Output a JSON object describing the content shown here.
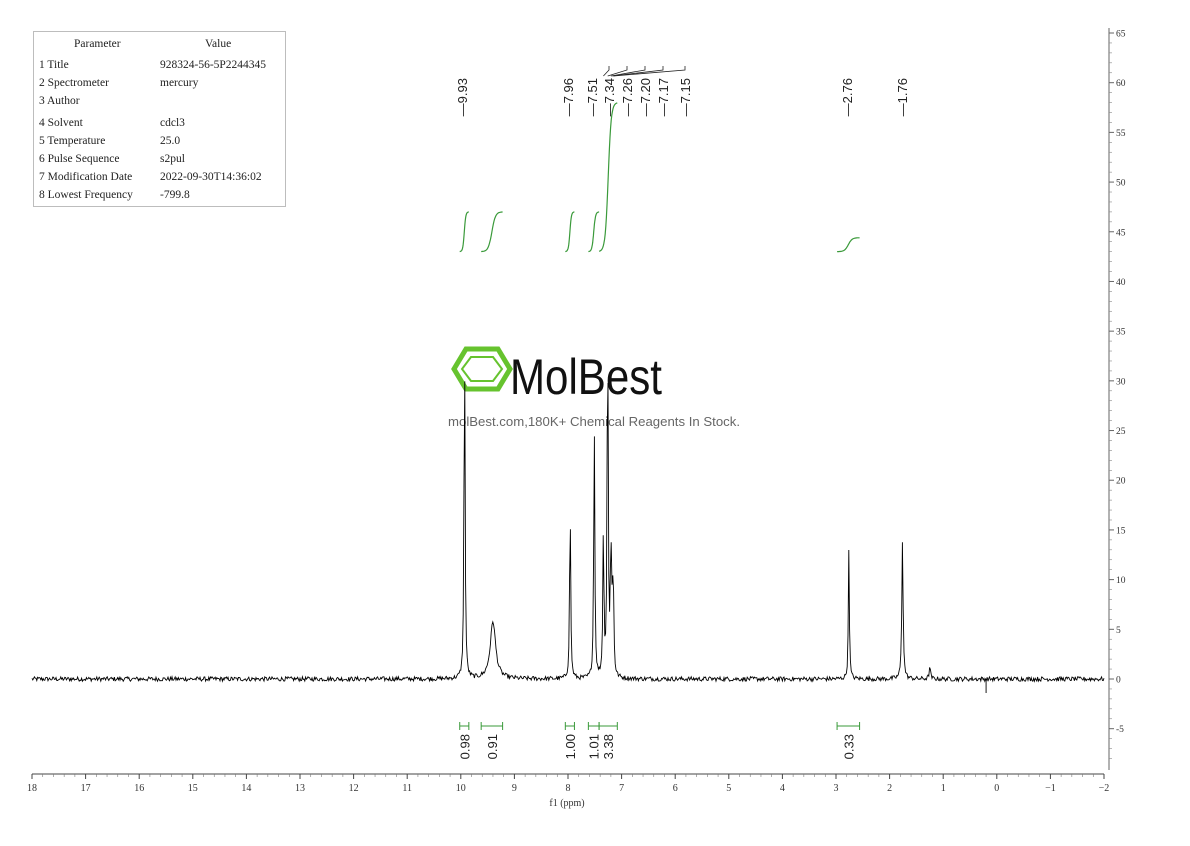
{
  "parameters": {
    "header": {
      "name": "Parameter",
      "value": "Value"
    },
    "rows": [
      {
        "name": "1 Title",
        "value": "928324-56-5P2244345"
      },
      {
        "name": "2 Spectrometer",
        "value": "mercury"
      },
      {
        "name": "3 Author",
        "value": ""
      },
      {
        "name": "4 Solvent",
        "value": "cdcl3"
      },
      {
        "name": "5 Temperature",
        "value": "25.0"
      },
      {
        "name": "6 Pulse Sequence",
        "value": "s2pul"
      },
      {
        "name": "7 Modification Date",
        "value": "2022-09-30T14:36:02"
      },
      {
        "name": "8 Lowest Frequency",
        "value": "-799.8"
      }
    ]
  },
  "watermark": {
    "brand": "MolBest",
    "tagline": "molBest.com,180K+ Chemical Reagents In Stock."
  },
  "chart_data": {
    "type": "line",
    "xlabel": "f1 (ppm)",
    "xlim": [
      18,
      -2
    ],
    "x_ticks": [
      "18",
      "17",
      "16",
      "15",
      "14",
      "13",
      "12",
      "11",
      "10",
      "9",
      "8",
      "7",
      "6",
      "5",
      "4",
      "3",
      "2",
      "1",
      "0",
      "-1",
      "-2"
    ],
    "ylim": [
      -9,
      65
    ],
    "y_ticks": [
      "65",
      "60",
      "55",
      "50",
      "45",
      "40",
      "35",
      "30",
      "25",
      "20",
      "15",
      "10",
      "5",
      "0",
      "-5"
    ],
    "colors": {
      "spectrum": "#000000",
      "integral": "#3a9a3a",
      "axis": "#555555",
      "watermark": "#66c32e"
    },
    "peak_labels": [
      "9.93",
      "7.96",
      "7.51",
      "7.34",
      "7.26",
      "7.20",
      "7.17",
      "7.15",
      "2.76",
      "1.76"
    ],
    "peaks": [
      {
        "ppm": 9.93,
        "height": 34.5,
        "width": 0.012
      },
      {
        "ppm": 9.4,
        "height": 5.8,
        "width": 0.06
      },
      {
        "ppm": 7.96,
        "height": 17.5,
        "width": 0.012
      },
      {
        "ppm": 7.51,
        "height": 25.5,
        "width": 0.012
      },
      {
        "ppm": 7.34,
        "height": 14.5,
        "width": 0.012
      },
      {
        "ppm": 7.26,
        "height": 36.5,
        "width": 0.012
      },
      {
        "ppm": 7.2,
        "height": 14.0,
        "width": 0.011
      },
      {
        "ppm": 7.17,
        "height": 8.0,
        "width": 0.011
      },
      {
        "ppm": 7.15,
        "height": 6.0,
        "width": 0.011
      },
      {
        "ppm": 2.76,
        "height": 13.2,
        "width": 0.011
      },
      {
        "ppm": 1.76,
        "height": 14.0,
        "width": 0.014
      },
      {
        "ppm": 1.25,
        "height": 1.2,
        "width": 0.015
      }
    ],
    "integrals": [
      {
        "from": 10.02,
        "to": 9.85,
        "value": "0.98",
        "level_low": 43,
        "level_high": 47
      },
      {
        "from": 9.62,
        "to": 9.22,
        "value": "0.91",
        "level_low": 43,
        "level_high": 47
      },
      {
        "from": 8.05,
        "to": 7.88,
        "value": "1.00",
        "level_low": 43,
        "level_high": 47
      },
      {
        "from": 7.62,
        "to": 7.42,
        "value": "1.01",
        "level_low": 43,
        "level_high": 47
      },
      {
        "from": 7.42,
        "to": 7.08,
        "value": "3.38",
        "level_low": 43,
        "level_high": 58
      }
    ],
    "extra_integrals": [
      {
        "from": 2.98,
        "to": 2.56,
        "value": "0.33",
        "level_low": 43,
        "level_high": 44.4
      }
    ]
  }
}
